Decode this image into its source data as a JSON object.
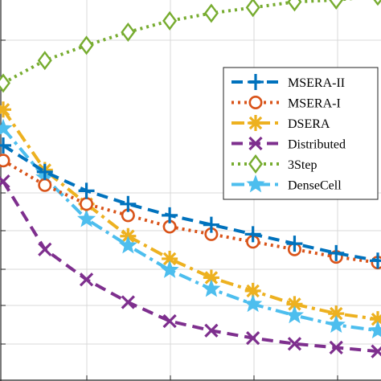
{
  "chart_data": {
    "type": "line",
    "x": [
      0,
      1,
      2,
      3,
      4,
      5,
      6,
      7,
      8,
      9
    ],
    "xlim": [
      0,
      9
    ],
    "ylim": [
      0,
      10
    ],
    "grid": true,
    "legend_placement": "right-middle",
    "series": [
      {
        "name": "MSERA-II",
        "color": "#0072BD",
        "line": "dashed",
        "marker": "plus",
        "values": [
          6.15,
          5.45,
          4.95,
          4.6,
          4.3,
          4.05,
          3.8,
          3.55,
          3.3,
          3.1
        ]
      },
      {
        "name": "MSERA-I",
        "color": "#D95319",
        "line": "dotted",
        "marker": "circle",
        "values": [
          5.75,
          5.1,
          4.6,
          4.3,
          4.0,
          3.8,
          3.6,
          3.4,
          3.2,
          3.05
        ]
      },
      {
        "name": "DSERA",
        "color": "#EDB120",
        "line": "dash-dot",
        "marker": "asterisk",
        "values": [
          7.1,
          5.5,
          4.6,
          3.75,
          3.15,
          2.65,
          2.3,
          1.95,
          1.7,
          1.55
        ]
      },
      {
        "name": "Distributed",
        "color": "#7E2F8E",
        "line": "dashed",
        "marker": "x",
        "values": [
          5.2,
          3.4,
          2.6,
          2.0,
          1.5,
          1.25,
          1.05,
          0.9,
          0.8,
          0.7
        ]
      },
      {
        "name": "3Step",
        "color": "#77AC30",
        "line": "dotted",
        "marker": "diamond",
        "values": [
          7.8,
          8.4,
          8.8,
          9.15,
          9.45,
          9.65,
          9.8,
          9.95,
          10.0,
          10.1
        ]
      },
      {
        "name": "DenseCell",
        "color": "#4DBEEE",
        "line": "dash-dot",
        "marker": "pentagram",
        "values": [
          6.6,
          5.3,
          4.2,
          3.5,
          2.85,
          2.35,
          1.95,
          1.65,
          1.4,
          1.25
        ]
      }
    ]
  }
}
